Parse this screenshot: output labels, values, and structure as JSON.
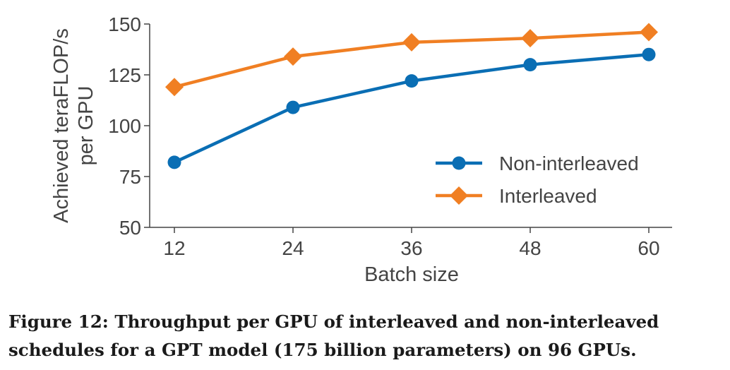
{
  "chart_data": {
    "type": "line",
    "x": [
      12,
      24,
      36,
      48,
      60
    ],
    "xlabel": "Batch size",
    "ylabel_lines": [
      "Achieved teraFLOP/s",
      "per GPU"
    ],
    "ylim": [
      50,
      150
    ],
    "yticks": [
      50,
      75,
      100,
      125,
      150
    ],
    "grid": false,
    "legend_position": "lower-right",
    "series": [
      {
        "name": "Non-interleaved",
        "values": [
          82,
          109,
          122,
          130,
          135
        ],
        "color": "#0a6eb4",
        "marker": "circle"
      },
      {
        "name": "Interleaved",
        "values": [
          119,
          134,
          141,
          143,
          146
        ],
        "color": "#f07f23",
        "marker": "diamond"
      }
    ]
  },
  "caption": "Figure 12: Throughput per GPU of interleaved and non-interleaved schedules for a GPT model (175 billion parameters) on 96 GPUs."
}
